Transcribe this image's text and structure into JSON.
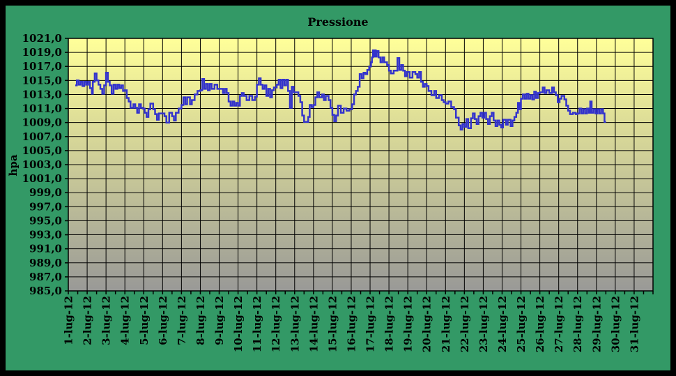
{
  "title": "Pressione",
  "colors": {
    "background_green": "#339966",
    "outer_border": "#000000",
    "plot_gradient_top": "#FFFF99",
    "plot_gradient_bottom": "#999997",
    "gridline": "#000000",
    "axis": "#000000",
    "line": "#3333CC",
    "text": "#000000"
  },
  "chart_data": {
    "type": "line",
    "line_style": "step",
    "title": "Pressione",
    "ylabel": "hpa",
    "xlabel": "",
    "grid": true,
    "legend": false,
    "ylim": [
      985,
      1021
    ],
    "ytick_step": 2,
    "ytick_labels": [
      "1021,0",
      "1019,0",
      "1017,0",
      "1015,0",
      "1013,0",
      "1011,0",
      "1009,0",
      "1007,0",
      "1005,0",
      "1003,0",
      "1001,0",
      "999,0",
      "997,0",
      "995,0",
      "993,0",
      "991,0",
      "989,0",
      "987,0",
      "985,0"
    ],
    "categories": [
      "1-lug-12",
      "2-lug-12",
      "3-lug-12",
      "4-lug-12",
      "5-lug-12",
      "6-lug-12",
      "7-lug-12",
      "8-lug-12",
      "9-lug-12",
      "10-lug-12",
      "11-lug-12",
      "12-lug-12",
      "13-lug-12",
      "14-lug-12",
      "15-lug-12",
      "16-lug-12",
      "17-lug-12",
      "18-lug-12",
      "19-lug-12",
      "20-lug-12",
      "21-lug-12",
      "22-lug-12",
      "23-lug-12",
      "24-lug-12",
      "25-lug-12",
      "26-lug-12",
      "27-lug-12",
      "28-lug-12",
      "29-lug-12",
      "30-lug-12",
      "31-lug-12"
    ],
    "x_days_total": 31,
    "minor_xtick_per_day": 2,
    "series": [
      {
        "name": "Pressione",
        "units": "hPa",
        "points": [
          [
            1.37,
            1014.3
          ],
          [
            1.45,
            1015.0
          ],
          [
            1.55,
            1014.4
          ],
          [
            1.65,
            1014.8
          ],
          [
            1.75,
            1014.2
          ],
          [
            1.85,
            1014.8
          ],
          [
            1.95,
            1014.4
          ],
          [
            2.05,
            1014.8
          ],
          [
            2.15,
            1013.9
          ],
          [
            2.25,
            1013.1
          ],
          [
            2.3,
            1014.8
          ],
          [
            2.4,
            1016.0
          ],
          [
            2.5,
            1015.0
          ],
          [
            2.6,
            1014.4
          ],
          [
            2.7,
            1013.8
          ],
          [
            2.8,
            1013.1
          ],
          [
            2.9,
            1014.3
          ],
          [
            3.0,
            1016.1
          ],
          [
            3.1,
            1014.8
          ],
          [
            3.2,
            1014.3
          ],
          [
            3.3,
            1013.1
          ],
          [
            3.4,
            1014.4
          ],
          [
            3.5,
            1013.8
          ],
          [
            3.6,
            1014.4
          ],
          [
            3.7,
            1013.9
          ],
          [
            3.8,
            1014.3
          ],
          [
            3.9,
            1013.5
          ],
          [
            4.0,
            1013.6
          ],
          [
            4.1,
            1012.5
          ],
          [
            4.2,
            1012.0
          ],
          [
            4.3,
            1011.1
          ],
          [
            4.45,
            1011.6
          ],
          [
            4.55,
            1011.1
          ],
          [
            4.65,
            1010.4
          ],
          [
            4.75,
            1011.6
          ],
          [
            4.85,
            1011.1
          ],
          [
            4.95,
            1011.0
          ],
          [
            5.05,
            1010.4
          ],
          [
            5.15,
            1009.8
          ],
          [
            5.25,
            1010.9
          ],
          [
            5.35,
            1011.7
          ],
          [
            5.5,
            1010.9
          ],
          [
            5.6,
            1010.2
          ],
          [
            5.7,
            1009.4
          ],
          [
            5.8,
            1010.3
          ],
          [
            5.95,
            1010.3
          ],
          [
            6.1,
            1009.9
          ],
          [
            6.2,
            1009.0
          ],
          [
            6.35,
            1010.4
          ],
          [
            6.5,
            1009.9
          ],
          [
            6.6,
            1009.3
          ],
          [
            6.7,
            1010.4
          ],
          [
            6.85,
            1011.0
          ],
          [
            7.0,
            1011.5
          ],
          [
            7.1,
            1012.6
          ],
          [
            7.2,
            1011.6
          ],
          [
            7.3,
            1012.6
          ],
          [
            7.45,
            1011.6
          ],
          [
            7.55,
            1012.2
          ],
          [
            7.7,
            1013.0
          ],
          [
            7.85,
            1013.5
          ],
          [
            8.0,
            1013.6
          ],
          [
            8.1,
            1015.2
          ],
          [
            8.2,
            1013.8
          ],
          [
            8.3,
            1014.5
          ],
          [
            8.4,
            1013.6
          ],
          [
            8.5,
            1014.5
          ],
          [
            8.6,
            1013.8
          ],
          [
            8.75,
            1014.4
          ],
          [
            8.9,
            1013.8
          ],
          [
            9.05,
            1013.8
          ],
          [
            9.2,
            1013.2
          ],
          [
            9.3,
            1013.8
          ],
          [
            9.4,
            1013.2
          ],
          [
            9.5,
            1012.0
          ],
          [
            9.6,
            1011.4
          ],
          [
            9.7,
            1012.0
          ],
          [
            9.8,
            1011.4
          ],
          [
            9.9,
            1011.8
          ],
          [
            10.0,
            1011.4
          ],
          [
            10.1,
            1012.8
          ],
          [
            10.2,
            1013.2
          ],
          [
            10.3,
            1012.8
          ],
          [
            10.45,
            1012.2
          ],
          [
            10.6,
            1012.8
          ],
          [
            10.75,
            1012.2
          ],
          [
            10.9,
            1012.7
          ],
          [
            11.0,
            1014.4
          ],
          [
            11.1,
            1015.3
          ],
          [
            11.2,
            1014.4
          ],
          [
            11.3,
            1013.8
          ],
          [
            11.4,
            1014.3
          ],
          [
            11.5,
            1012.8
          ],
          [
            11.6,
            1013.8
          ],
          [
            11.7,
            1012.6
          ],
          [
            11.8,
            1013.6
          ],
          [
            11.9,
            1014.0
          ],
          [
            12.05,
            1014.4
          ],
          [
            12.15,
            1015.1
          ],
          [
            12.25,
            1013.9
          ],
          [
            12.35,
            1015.1
          ],
          [
            12.45,
            1014.3
          ],
          [
            12.55,
            1015.1
          ],
          [
            12.65,
            1013.5
          ],
          [
            12.75,
            1011.1
          ],
          [
            12.85,
            1014.1
          ],
          [
            12.95,
            1013.3
          ],
          [
            13.1,
            1013.3
          ],
          [
            13.2,
            1012.8
          ],
          [
            13.3,
            1011.9
          ],
          [
            13.4,
            1010.0
          ],
          [
            13.5,
            1009.1
          ],
          [
            13.65,
            1009.1
          ],
          [
            13.72,
            1009.8
          ],
          [
            13.8,
            1011.5
          ],
          [
            13.9,
            1011.2
          ],
          [
            14.0,
            1011.5
          ],
          [
            14.1,
            1012.6
          ],
          [
            14.2,
            1013.3
          ],
          [
            14.3,
            1012.6
          ],
          [
            14.45,
            1013.0
          ],
          [
            14.55,
            1012.2
          ],
          [
            14.65,
            1012.8
          ],
          [
            14.8,
            1012.2
          ],
          [
            14.9,
            1011.1
          ],
          [
            15.0,
            1010.1
          ],
          [
            15.1,
            1009.2
          ],
          [
            15.2,
            1010.0
          ],
          [
            15.3,
            1011.4
          ],
          [
            15.45,
            1010.4
          ],
          [
            15.6,
            1011.0
          ],
          [
            15.75,
            1010.7
          ],
          [
            15.9,
            1010.9
          ],
          [
            16.05,
            1011.6
          ],
          [
            16.15,
            1013.0
          ],
          [
            16.25,
            1013.5
          ],
          [
            16.35,
            1014.1
          ],
          [
            16.45,
            1015.9
          ],
          [
            16.55,
            1015.3
          ],
          [
            16.65,
            1016.1
          ],
          [
            16.75,
            1015.9
          ],
          [
            16.85,
            1016.5
          ],
          [
            16.95,
            1017.0
          ],
          [
            17.05,
            1017.6
          ],
          [
            17.1,
            1018.3
          ],
          [
            17.15,
            1019.3
          ],
          [
            17.2,
            1018.4
          ],
          [
            17.25,
            1019.3
          ],
          [
            17.3,
            1018.4
          ],
          [
            17.35,
            1019.2
          ],
          [
            17.45,
            1018.3
          ],
          [
            17.55,
            1017.6
          ],
          [
            17.65,
            1018.3
          ],
          [
            17.75,
            1017.6
          ],
          [
            17.9,
            1017.2
          ],
          [
            18.0,
            1016.4
          ],
          [
            18.1,
            1016.0
          ],
          [
            18.25,
            1016.4
          ],
          [
            18.45,
            1018.2
          ],
          [
            18.55,
            1016.5
          ],
          [
            18.65,
            1017.2
          ],
          [
            18.75,
            1016.4
          ],
          [
            18.85,
            1015.6
          ],
          [
            18.95,
            1016.2
          ],
          [
            19.1,
            1015.4
          ],
          [
            19.25,
            1016.2
          ],
          [
            19.4,
            1015.9
          ],
          [
            19.5,
            1015.4
          ],
          [
            19.6,
            1016.2
          ],
          [
            19.7,
            1014.8
          ],
          [
            19.8,
            1014.1
          ],
          [
            19.9,
            1014.5
          ],
          [
            20.0,
            1014.2
          ],
          [
            20.1,
            1013.5
          ],
          [
            20.25,
            1012.9
          ],
          [
            20.4,
            1013.5
          ],
          [
            20.5,
            1012.5
          ],
          [
            20.65,
            1012.9
          ],
          [
            20.8,
            1012.2
          ],
          [
            20.9,
            1011.9
          ],
          [
            21.0,
            1011.7
          ],
          [
            21.15,
            1012.0
          ],
          [
            21.3,
            1011.2
          ],
          [
            21.45,
            1010.9
          ],
          [
            21.55,
            1009.7
          ],
          [
            21.7,
            1008.6
          ],
          [
            21.8,
            1008.0
          ],
          [
            21.9,
            1008.8
          ],
          [
            22.0,
            1008.4
          ],
          [
            22.1,
            1009.5
          ],
          [
            22.2,
            1008.2
          ],
          [
            22.35,
            1009.6
          ],
          [
            22.45,
            1010.3
          ],
          [
            22.55,
            1009.5
          ],
          [
            22.65,
            1008.8
          ],
          [
            22.75,
            1009.9
          ],
          [
            22.85,
            1010.4
          ],
          [
            22.95,
            1009.7
          ],
          [
            23.05,
            1010.4
          ],
          [
            23.15,
            1009.5
          ],
          [
            23.25,
            1008.8
          ],
          [
            23.35,
            1009.9
          ],
          [
            23.45,
            1010.4
          ],
          [
            23.55,
            1009.3
          ],
          [
            23.65,
            1008.5
          ],
          [
            23.75,
            1009.3
          ],
          [
            23.85,
            1008.7
          ],
          [
            23.95,
            1008.3
          ],
          [
            24.05,
            1009.4
          ],
          [
            24.2,
            1008.7
          ],
          [
            24.3,
            1009.4
          ],
          [
            24.45,
            1008.5
          ],
          [
            24.55,
            1009.3
          ],
          [
            24.65,
            1009.8
          ],
          [
            24.75,
            1010.4
          ],
          [
            24.84,
            1011.8
          ],
          [
            24.92,
            1010.9
          ],
          [
            25.0,
            1012.4
          ],
          [
            25.1,
            1013.0
          ],
          [
            25.2,
            1012.4
          ],
          [
            25.3,
            1013.1
          ],
          [
            25.4,
            1012.4
          ],
          [
            25.5,
            1012.9
          ],
          [
            25.6,
            1012.3
          ],
          [
            25.7,
            1013.4
          ],
          [
            25.8,
            1012.5
          ],
          [
            25.9,
            1013.2
          ],
          [
            26.0,
            1013.3
          ],
          [
            26.15,
            1014.0
          ],
          [
            26.25,
            1013.2
          ],
          [
            26.35,
            1013.6
          ],
          [
            26.5,
            1013.2
          ],
          [
            26.65,
            1014.0
          ],
          [
            26.75,
            1013.3
          ],
          [
            26.85,
            1012.9
          ],
          [
            26.95,
            1011.9
          ],
          [
            27.05,
            1012.4
          ],
          [
            27.15,
            1012.8
          ],
          [
            27.3,
            1012.3
          ],
          [
            27.4,
            1011.4
          ],
          [
            27.5,
            1010.7
          ],
          [
            27.6,
            1010.2
          ],
          [
            27.75,
            1010.4
          ],
          [
            27.9,
            1010.2
          ],
          [
            28.0,
            1010.3
          ],
          [
            28.1,
            1011.0
          ],
          [
            28.2,
            1010.3
          ],
          [
            28.3,
            1010.9
          ],
          [
            28.4,
            1010.3
          ],
          [
            28.5,
            1011.0
          ],
          [
            28.6,
            1010.4
          ],
          [
            28.67,
            1012.0
          ],
          [
            28.75,
            1010.4
          ],
          [
            28.85,
            1010.9
          ],
          [
            28.95,
            1010.3
          ],
          [
            29.05,
            1010.9
          ],
          [
            29.15,
            1010.3
          ],
          [
            29.25,
            1010.9
          ],
          [
            29.35,
            1010.3
          ],
          [
            29.43,
            1009.1
          ]
        ]
      }
    ]
  }
}
